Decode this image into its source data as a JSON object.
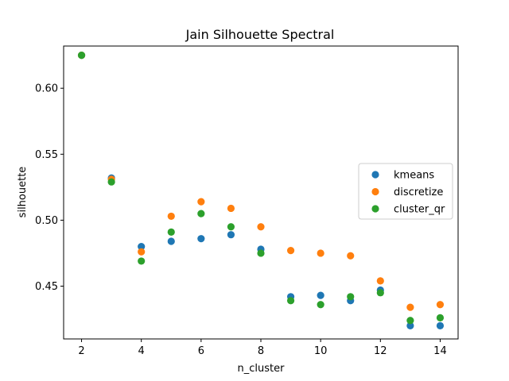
{
  "chart_data": {
    "type": "scatter",
    "title": "Jain Silhouette Spectral",
    "xlabel": "n_cluster",
    "ylabel": "silhouette",
    "xlim": [
      1.4,
      14.6
    ],
    "ylim": [
      0.41,
      0.632
    ],
    "xticks": [
      2,
      4,
      6,
      8,
      10,
      12,
      14
    ],
    "xtick_labels": [
      "2",
      "4",
      "6",
      "8",
      "10",
      "12",
      "14"
    ],
    "yticks": [
      0.45,
      0.5,
      0.55,
      0.6
    ],
    "ytick_labels": [
      "0.45",
      "0.50",
      "0.55",
      "0.60"
    ],
    "grid": false,
    "legend_position": "center-right",
    "x": [
      2,
      3,
      4,
      5,
      6,
      7,
      8,
      9,
      10,
      11,
      12,
      13,
      14
    ],
    "series": [
      {
        "name": "kmeans",
        "color": "#1f77b4",
        "values": [
          0.625,
          0.532,
          0.48,
          0.484,
          0.486,
          0.489,
          0.478,
          0.442,
          0.443,
          0.439,
          0.447,
          0.42,
          0.42
        ]
      },
      {
        "name": "discretize",
        "color": "#ff7f0e",
        "values": [
          0.625,
          0.531,
          0.476,
          0.503,
          0.514,
          0.509,
          0.495,
          0.477,
          0.475,
          0.473,
          0.454,
          0.434,
          0.436
        ]
      },
      {
        "name": "cluster_qr",
        "color": "#2ca02c",
        "values": [
          0.625,
          0.529,
          0.469,
          0.491,
          0.505,
          0.495,
          0.475,
          0.439,
          0.436,
          0.442,
          0.445,
          0.424,
          0.426
        ]
      }
    ]
  }
}
